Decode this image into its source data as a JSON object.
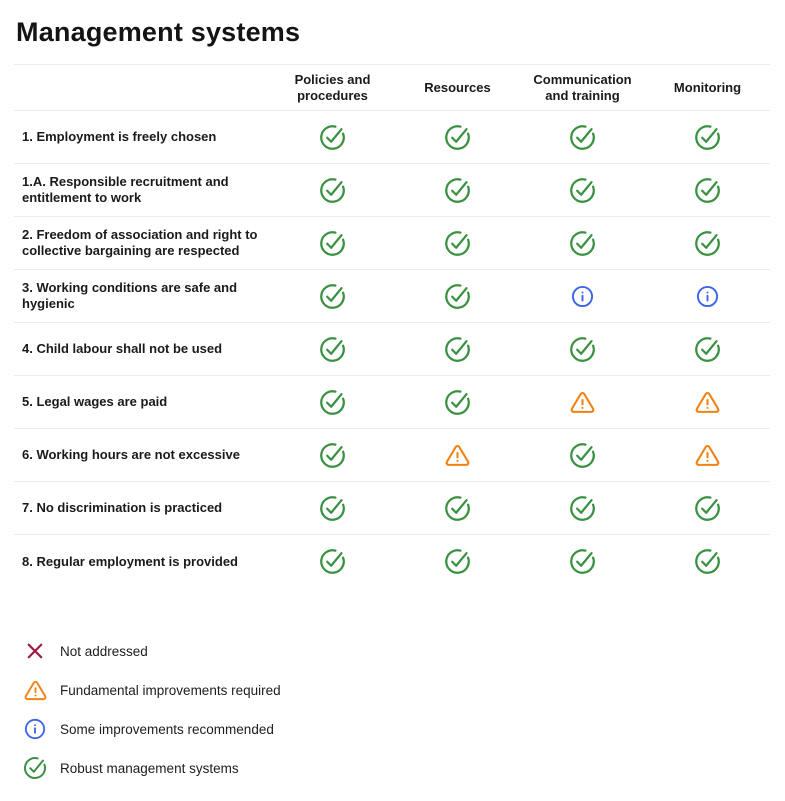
{
  "title": "Management systems",
  "table": {
    "columns": [
      "Policies and procedures",
      "Resources",
      "Communication and training",
      "Monitoring"
    ],
    "rows": [
      {
        "label": "1. Employment is freely chosen",
        "cells": [
          "check",
          "check",
          "check",
          "check"
        ]
      },
      {
        "label": "1.A. Responsible recruitment and entitlement to work",
        "cells": [
          "check",
          "check",
          "check",
          "check"
        ]
      },
      {
        "label": "2. Freedom of association and right to collective bargaining are respected",
        "cells": [
          "check",
          "check",
          "check",
          "check"
        ]
      },
      {
        "label": "3. Working conditions are safe and hygienic",
        "cells": [
          "check",
          "check",
          "info",
          "info"
        ]
      },
      {
        "label": "4. Child labour shall not be used",
        "cells": [
          "check",
          "check",
          "check",
          "check"
        ]
      },
      {
        "label": "5. Legal wages are paid",
        "cells": [
          "check",
          "check",
          "warning",
          "warning"
        ]
      },
      {
        "label": "6. Working hours are not excessive",
        "cells": [
          "check",
          "warning",
          "check",
          "warning"
        ]
      },
      {
        "label": "7. No discrimination is practiced",
        "cells": [
          "check",
          "check",
          "check",
          "check"
        ]
      },
      {
        "label": "8. Regular employment is provided",
        "cells": [
          "check",
          "check",
          "check",
          "check"
        ]
      }
    ]
  },
  "legend": [
    {
      "icon": "x",
      "label": "Not addressed"
    },
    {
      "icon": "warning",
      "label": "Fundamental improvements required"
    },
    {
      "icon": "info",
      "label": "Some improvements recommended"
    },
    {
      "icon": "check",
      "label": "Robust management systems"
    }
  ],
  "status_colors": {
    "check": "#3a9142",
    "warning": "#f28111",
    "info": "#3b64e8",
    "x": "#9e1b42"
  }
}
